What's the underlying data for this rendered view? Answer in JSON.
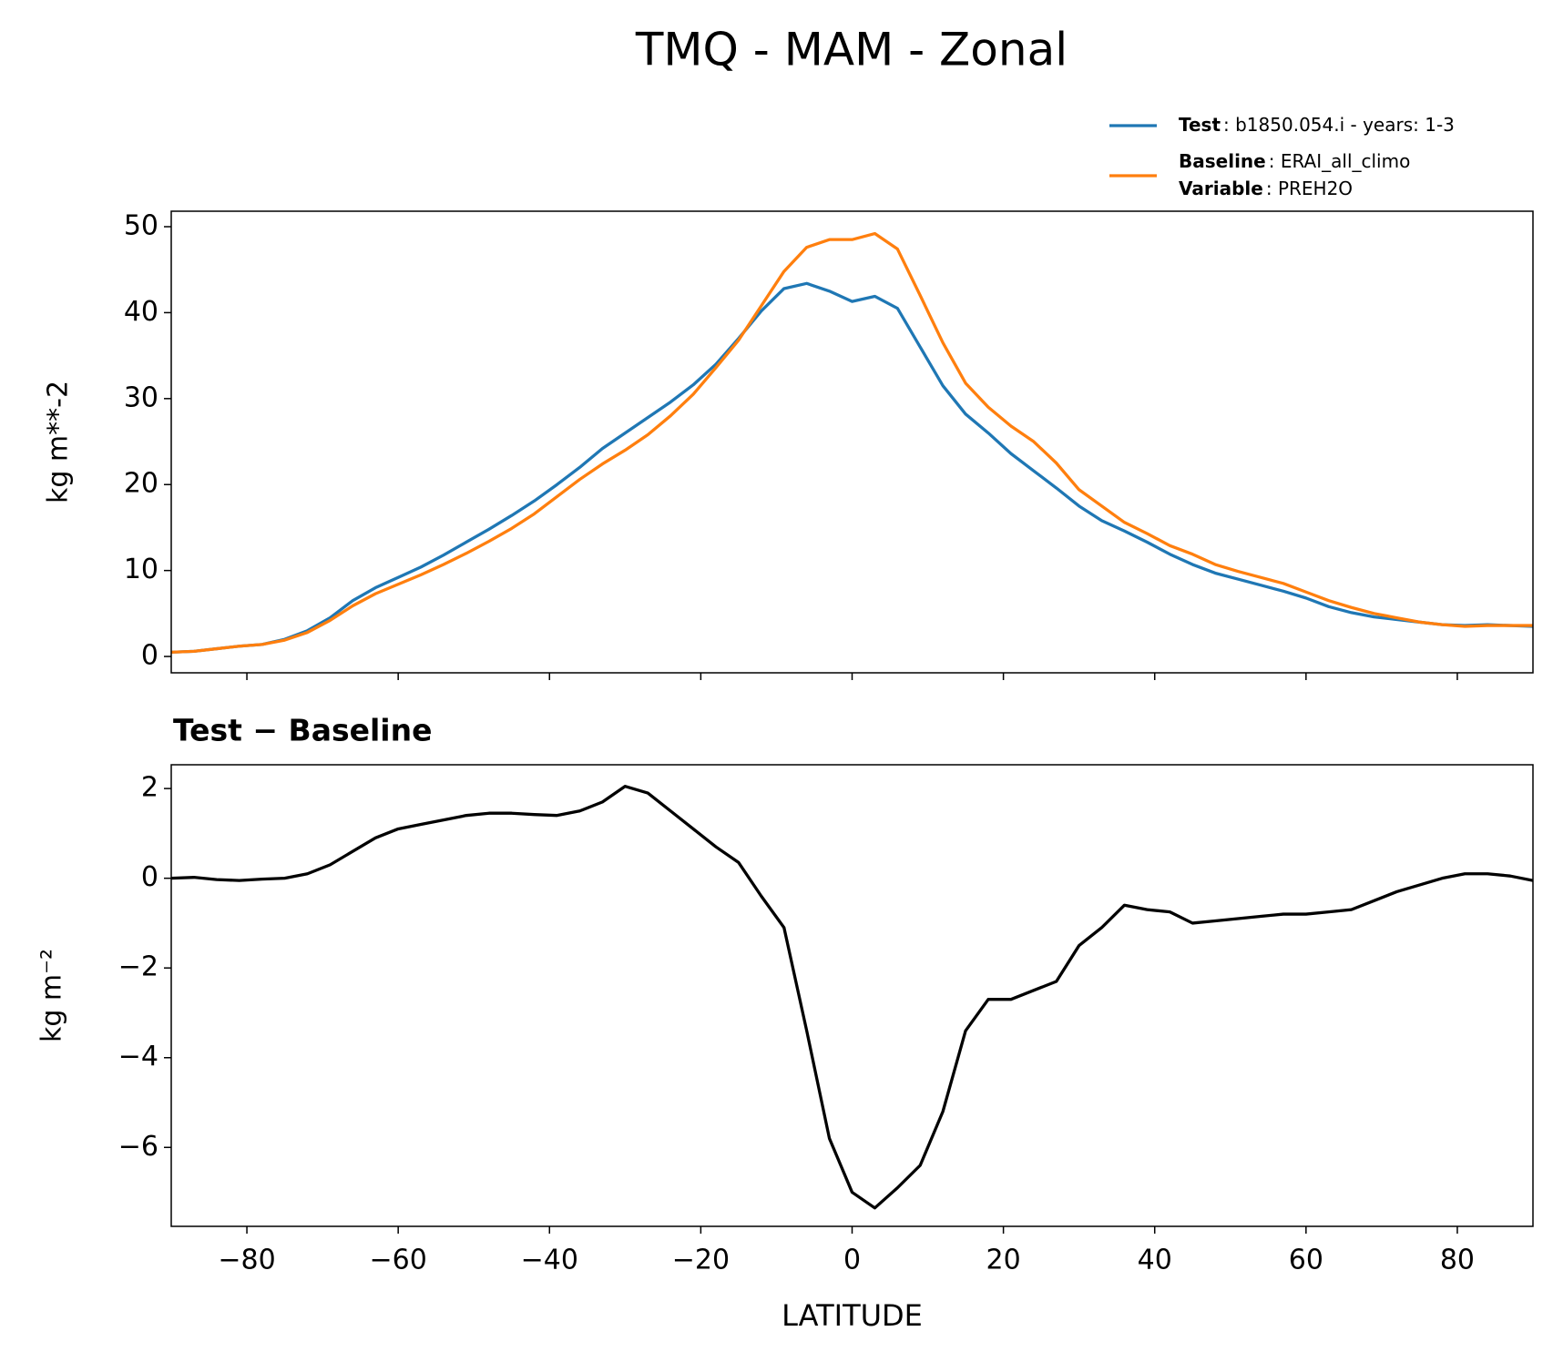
{
  "title": "TMQ - MAM - Zonal",
  "chart_data": [
    {
      "type": "line",
      "ylabel": "kg m**-2",
      "x": [
        -90,
        -87,
        -84,
        -81,
        -78,
        -75,
        -72,
        -69,
        -66,
        -63,
        -60,
        -57,
        -54,
        -51,
        -48,
        -45,
        -42,
        -39,
        -36,
        -33,
        -30,
        -27,
        -24,
        -21,
        -18,
        -15,
        -12,
        -9,
        -6,
        -3,
        0,
        3,
        6,
        9,
        12,
        15,
        18,
        21,
        24,
        27,
        30,
        33,
        36,
        39,
        42,
        45,
        48,
        51,
        54,
        57,
        60,
        63,
        66,
        69,
        72,
        75,
        78,
        81,
        84,
        87,
        90
      ],
      "series": [
        {
          "name": "Test",
          "legend_text": ": b1850.054.i - years: 1-3",
          "color": "#1f77b4",
          "values": [
            0.5,
            0.6,
            0.9,
            1.2,
            1.4,
            2.0,
            3.0,
            4.5,
            6.5,
            8.0,
            9.2,
            10.4,
            11.8,
            13.3,
            14.8,
            16.4,
            18.1,
            20.0,
            22.0,
            24.2,
            26.0,
            27.8,
            29.6,
            31.6,
            34.0,
            37.0,
            40.2,
            42.8,
            43.4,
            42.5,
            41.3,
            41.9,
            40.5,
            36.0,
            31.5,
            28.2,
            26.0,
            23.6,
            21.6,
            19.6,
            17.5,
            15.8,
            14.6,
            13.3,
            11.9,
            10.7,
            9.7,
            9.0,
            8.3,
            7.6,
            6.8,
            5.8,
            5.1,
            4.6,
            4.3,
            4.0,
            3.7,
            3.6,
            3.7,
            3.6,
            3.5
          ]
        },
        {
          "name": "Baseline",
          "legend_text": ": ERAI_all_climo",
          "extra_name": "Variable",
          "extra_text": ": PREH2O",
          "color": "#ff7f0e",
          "values": [
            0.5,
            0.6,
            0.9,
            1.2,
            1.4,
            1.9,
            2.8,
            4.2,
            5.9,
            7.3,
            8.4,
            9.5,
            10.7,
            12.0,
            13.4,
            14.9,
            16.6,
            18.6,
            20.6,
            22.4,
            24.0,
            25.8,
            28.0,
            30.5,
            33.6,
            36.8,
            40.8,
            44.8,
            47.6,
            48.5,
            48.5,
            49.2,
            47.4,
            42.0,
            36.5,
            31.8,
            29.0,
            26.8,
            25.0,
            22.5,
            19.4,
            17.5,
            15.6,
            14.3,
            12.9,
            11.9,
            10.7,
            9.9,
            9.2,
            8.5,
            7.5,
            6.5,
            5.7,
            5.0,
            4.5,
            4.0,
            3.7,
            3.5,
            3.6,
            3.6,
            3.6
          ]
        }
      ],
      "xlim": [
        -90,
        90
      ],
      "xticks": [
        -80,
        -60,
        -40,
        -20,
        0,
        20,
        40,
        60,
        80
      ],
      "ylim": [
        -1.9,
        51.8
      ],
      "yticks": [
        0,
        10,
        20,
        30,
        40,
        50
      ],
      "legend": "upper right"
    },
    {
      "type": "line",
      "title": "Test − Baseline",
      "xlabel": "LATITUDE",
      "ylabel": "kg m⁻²",
      "x": [
        -90,
        -87,
        -84,
        -81,
        -78,
        -75,
        -72,
        -69,
        -66,
        -63,
        -60,
        -57,
        -54,
        -51,
        -48,
        -45,
        -42,
        -39,
        -36,
        -33,
        -30,
        -27,
        -24,
        -21,
        -18,
        -15,
        -12,
        -9,
        -6,
        -3,
        0,
        3,
        6,
        9,
        12,
        15,
        18,
        21,
        24,
        27,
        30,
        33,
        36,
        39,
        42,
        45,
        48,
        51,
        54,
        57,
        60,
        63,
        66,
        69,
        72,
        75,
        78,
        81,
        84,
        87,
        90
      ],
      "series": [
        {
          "color": "#000000",
          "values": [
            0.0,
            0.02,
            -0.03,
            -0.05,
            -0.02,
            0.0,
            0.1,
            0.3,
            0.6,
            0.9,
            1.1,
            1.2,
            1.3,
            1.4,
            1.45,
            1.45,
            1.42,
            1.4,
            1.5,
            1.7,
            2.05,
            1.9,
            1.5,
            1.1,
            0.7,
            0.35,
            -0.4,
            -1.1,
            -3.4,
            -5.8,
            -7.0,
            -7.35,
            -6.9,
            -6.4,
            -5.2,
            -3.4,
            -2.7,
            -2.7,
            -2.5,
            -2.3,
            -1.5,
            -1.1,
            -0.6,
            -0.7,
            -0.75,
            -1.0,
            -0.95,
            -0.9,
            -0.85,
            -0.8,
            -0.8,
            -0.75,
            -0.7,
            -0.5,
            -0.3,
            -0.15,
            0.0,
            0.1,
            0.1,
            0.05,
            -0.05
          ]
        }
      ],
      "xlim": [
        -90,
        90
      ],
      "xticks": [
        {
          "value": -80,
          "label": "−80"
        },
        {
          "value": -60,
          "label": "−60"
        },
        {
          "value": -40,
          "label": "−40"
        },
        {
          "value": -20,
          "label": "−20"
        },
        0,
        20,
        40,
        60,
        80
      ],
      "ylim": [
        -7.76,
        2.53
      ],
      "yticks": [
        {
          "value": -6,
          "label": "−6"
        },
        {
          "value": -4,
          "label": "−4"
        },
        {
          "value": -2,
          "label": "−2"
        },
        0,
        2
      ]
    }
  ]
}
